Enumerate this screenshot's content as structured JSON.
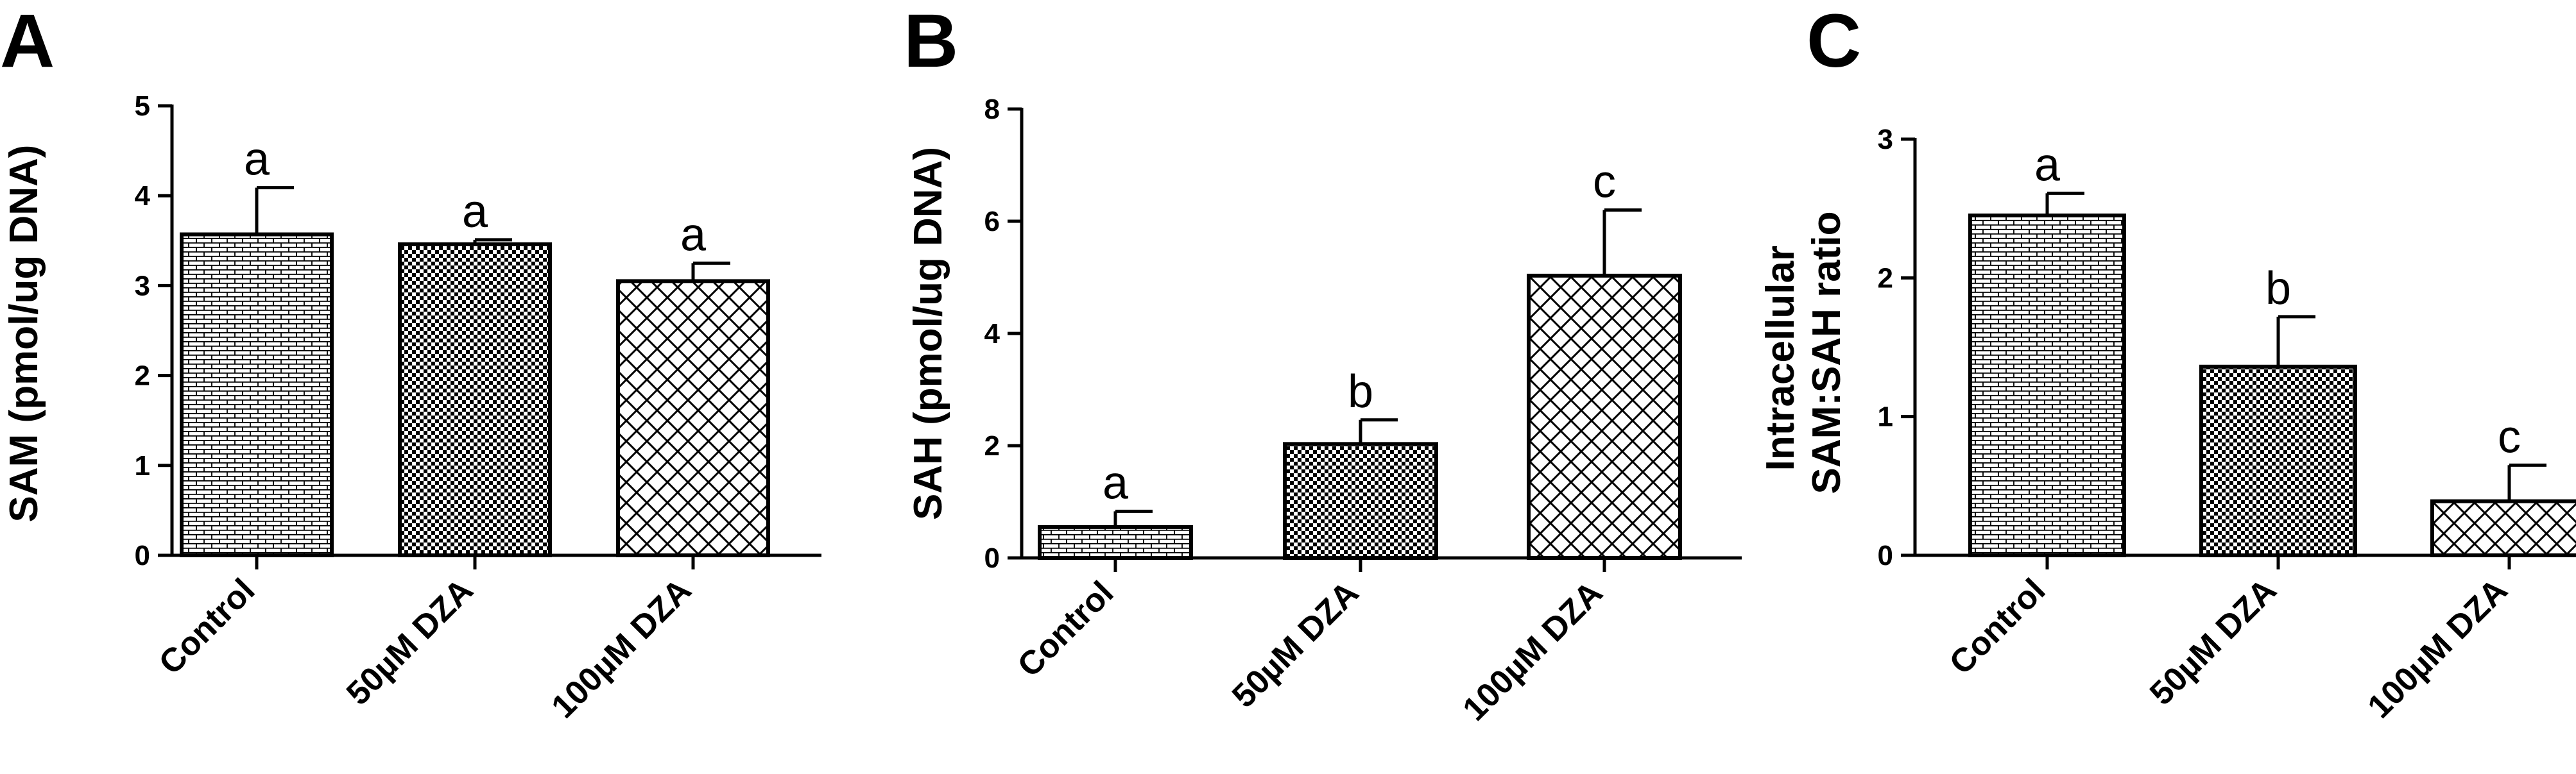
{
  "chart_data": [
    {
      "type": "bar",
      "panel": "A",
      "ylabel": "SAM (pmol/ug DNA)",
      "categories": [
        "Control",
        "50µM DZA",
        "100µM DZA"
      ],
      "values": [
        3.57,
        3.46,
        3.05
      ],
      "errors": [
        0.52,
        0.05,
        0.2
      ],
      "significance": [
        "a",
        "a",
        "a"
      ],
      "ylim": [
        0,
        5
      ],
      "yticks": [
        "0",
        "1",
        "2",
        "3",
        "4",
        "5"
      ],
      "patterns": [
        "brick",
        "checker",
        "crosshatch"
      ],
      "grid": false
    },
    {
      "type": "bar",
      "panel": "B",
      "ylabel": "SAH (pmol/ug DNA)",
      "categories": [
        "Control",
        "50µM DZA",
        "100µM DZA"
      ],
      "values": [
        0.55,
        2.03,
        5.03
      ],
      "errors": [
        0.28,
        0.43,
        1.17
      ],
      "significance": [
        "a",
        "b",
        "c"
      ],
      "ylim": [
        0,
        8
      ],
      "yticks": [
        "0",
        "2",
        "4",
        "6",
        "8"
      ],
      "patterns": [
        "brick",
        "checker",
        "crosshatch"
      ],
      "grid": false
    },
    {
      "type": "bar",
      "panel": "C",
      "ylabel": [
        "Intracellular",
        "SAM:SAH ratio"
      ],
      "categories": [
        "Control",
        "50µM DZA",
        "100µM DZA"
      ],
      "values": [
        2.45,
        1.36,
        0.39
      ],
      "errors": [
        0.16,
        0.36,
        0.26
      ],
      "significance": [
        "a",
        "b",
        "c"
      ],
      "ylim": [
        0,
        3
      ],
      "yticks": [
        "0",
        "1",
        "2",
        "3"
      ],
      "patterns": [
        "brick",
        "checker",
        "crosshatch"
      ],
      "grid": false
    }
  ]
}
